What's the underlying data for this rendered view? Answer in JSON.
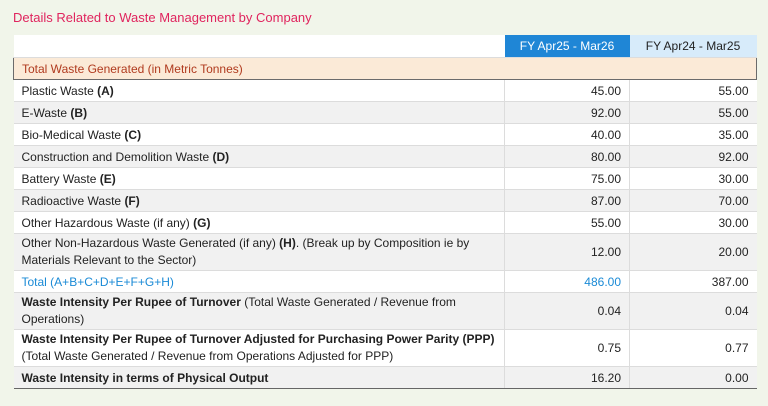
{
  "title": "Details Related to Waste Management by Company",
  "columns": {
    "current": "FY Apr25 - Mar26",
    "previous": "FY Apr24 - Mar25"
  },
  "section_header": "Total Waste Generated (in Metric Tonnes)",
  "rows": [
    {
      "label": "Plastic Waste ",
      "bold": "(A)",
      "rest": "",
      "cur": "45.00",
      "prev": "55.00"
    },
    {
      "label": "E-Waste ",
      "bold": "(B)",
      "rest": "",
      "cur": "92.00",
      "prev": "55.00"
    },
    {
      "label": "Bio-Medical Waste ",
      "bold": "(C)",
      "rest": "",
      "cur": "40.00",
      "prev": "35.00"
    },
    {
      "label": "Construction and Demolition Waste ",
      "bold": "(D)",
      "rest": "",
      "cur": "80.00",
      "prev": "92.00"
    },
    {
      "label": "Battery Waste ",
      "bold": "(E)",
      "rest": "",
      "cur": "75.00",
      "prev": "30.00"
    },
    {
      "label": "Radioactive Waste ",
      "bold": "(F)",
      "rest": "",
      "cur": "87.00",
      "prev": "70.00"
    },
    {
      "label": "Other Hazardous Waste (if any) ",
      "bold": "(G)",
      "rest": "",
      "cur": "55.00",
      "prev": "30.00"
    },
    {
      "label": "Other Non-Hazardous Waste Generated (if any) ",
      "bold": "(H)",
      "rest": ". (Break up by Composition ie by Materials Relevant to the Sector)",
      "cur": "12.00",
      "prev": "20.00"
    }
  ],
  "total": {
    "label": "Total (A+B+C+D+E+F+G+H)",
    "cur": "486.00",
    "prev": "387.00"
  },
  "intensity_rows": [
    {
      "bold": "Waste Intensity Per Rupee of Turnover",
      "rest": " (Total Waste Generated / Revenue from Operations)",
      "cur": "0.04",
      "prev": "0.04"
    },
    {
      "bold": "Waste Intensity Per Rupee of Turnover Adjusted for Purchasing Power Parity (PPP)",
      "rest": " (Total Waste Generated / Revenue from Operations Adjusted for PPP)",
      "cur": "0.75",
      "prev": "0.77"
    },
    {
      "bold": "Waste Intensity in terms of Physical Output",
      "rest": "",
      "cur": "16.20",
      "prev": "0.00"
    }
  ]
}
